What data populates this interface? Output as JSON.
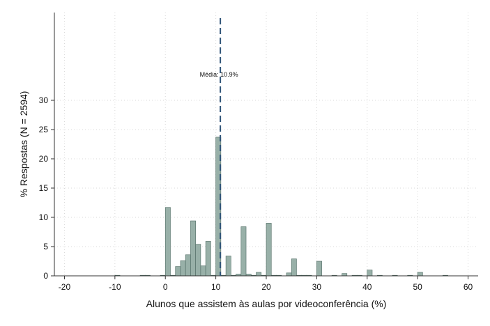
{
  "chart_data": {
    "type": "bar",
    "title": "",
    "xlabel": "Alunos que assistem às aulas por videoconferência (%)",
    "ylabel": "% Respostas (N = 2594)",
    "xlim": [
      -22,
      62
    ],
    "ylim": [
      0,
      45
    ],
    "xticks": [
      -20,
      -10,
      0,
      10,
      20,
      30,
      40,
      50,
      60
    ],
    "yticks": [
      0,
      5,
      10,
      15,
      20,
      25,
      30
    ],
    "grid": true,
    "legend": "none",
    "bar_color": "#98b0a8",
    "bar_edge_color": "#4e6a62",
    "mean_line": {
      "x": 10.9,
      "color": "#2f5478",
      "label": "Média: 10.9%"
    },
    "bin_width": 1,
    "bins": [
      {
        "x": -10,
        "y": 0.1
      },
      {
        "x": -5,
        "y": 0.1
      },
      {
        "x": -4,
        "y": 0.1
      },
      {
        "x": -1,
        "y": 0.1
      },
      {
        "x": 0,
        "y": 11.7
      },
      {
        "x": 1,
        "y": 0.1
      },
      {
        "x": 2,
        "y": 1.6
      },
      {
        "x": 3,
        "y": 2.6
      },
      {
        "x": 4,
        "y": 3.6
      },
      {
        "x": 5,
        "y": 9.4
      },
      {
        "x": 6,
        "y": 5.4
      },
      {
        "x": 7,
        "y": 1.7
      },
      {
        "x": 8,
        "y": 5.9
      },
      {
        "x": 9,
        "y": 0.1
      },
      {
        "x": 10,
        "y": 23.7
      },
      {
        "x": 11,
        "y": 0.1
      },
      {
        "x": 12,
        "y": 3.4
      },
      {
        "x": 13,
        "y": 0.1
      },
      {
        "x": 14,
        "y": 0.3
      },
      {
        "x": 15,
        "y": 8.4
      },
      {
        "x": 16,
        "y": 0.3
      },
      {
        "x": 17,
        "y": 0.1
      },
      {
        "x": 18,
        "y": 0.6
      },
      {
        "x": 19,
        "y": 0.1
      },
      {
        "x": 20,
        "y": 9.0
      },
      {
        "x": 21,
        "y": 0.1
      },
      {
        "x": 22,
        "y": 0.1
      },
      {
        "x": 24,
        "y": 0.5
      },
      {
        "x": 25,
        "y": 2.9
      },
      {
        "x": 26,
        "y": 0.1
      },
      {
        "x": 27,
        "y": 0.1
      },
      {
        "x": 28,
        "y": 0.1
      },
      {
        "x": 30,
        "y": 2.5
      },
      {
        "x": 33,
        "y": 0.1
      },
      {
        "x": 35,
        "y": 0.4
      },
      {
        "x": 37,
        "y": 0.1
      },
      {
        "x": 38,
        "y": 0.1
      },
      {
        "x": 40,
        "y": 1.0
      },
      {
        "x": 42,
        "y": 0.1
      },
      {
        "x": 45,
        "y": 0.1
      },
      {
        "x": 48,
        "y": 0.1
      },
      {
        "x": 50,
        "y": 0.6
      },
      {
        "x": 55,
        "y": 0.1
      }
    ]
  }
}
